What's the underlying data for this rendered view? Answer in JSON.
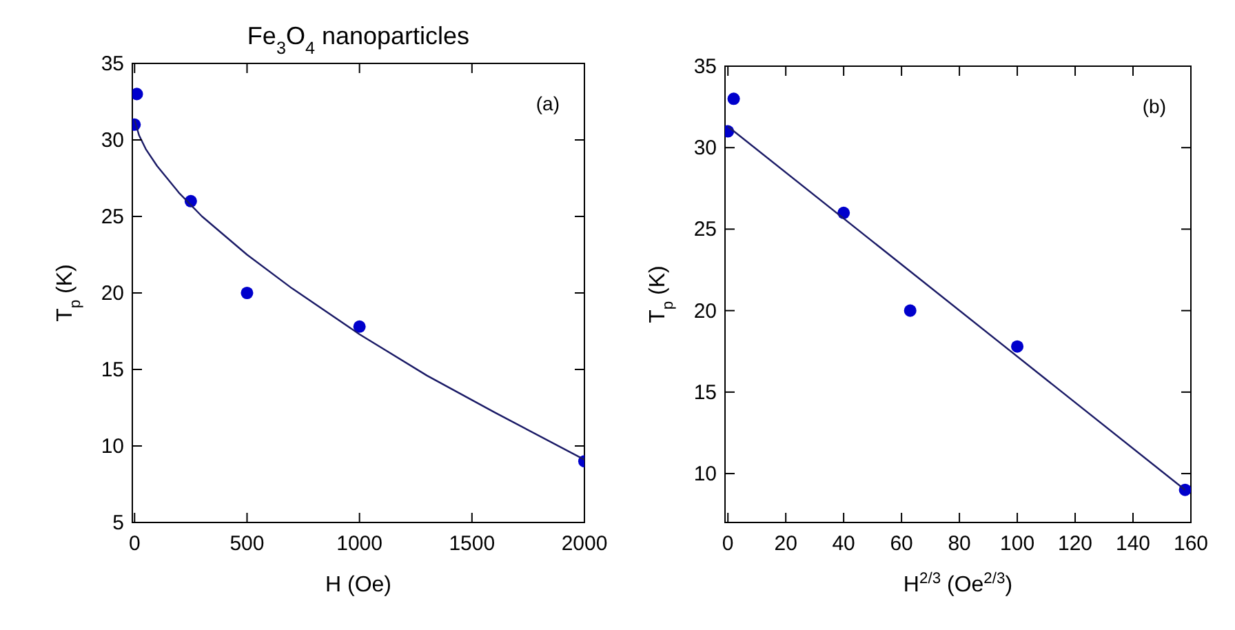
{
  "chart_data": [
    {
      "type": "scatter",
      "title": "Fe$_{3}$O$_{4}$ nanoparticles",
      "xlabel": "H (Oe)",
      "ylabel": "T$_{p}$ (K)",
      "annotations": [
        "(a)"
      ],
      "xlim": [
        -10,
        2000
      ],
      "xticks": [
        0,
        500,
        1000,
        1500,
        2000
      ],
      "ylim": [
        5,
        35
      ],
      "yticks": [
        5,
        10,
        15,
        20,
        25,
        30,
        35
      ],
      "grid": false,
      "legend": false,
      "marker": "circle",
      "series": [
        {
          "color": "#0000cc",
          "x": [
            0,
            10,
            250,
            500,
            1000,
            2000
          ],
          "values": [
            31,
            33,
            26,
            20,
            17.8,
            9
          ]
        },
        {
          "type": "line",
          "color": "#1a1a66",
          "marker": "none",
          "line_style": "solid",
          "x": [
            0,
            20,
            50,
            100,
            200,
            300,
            500,
            700,
            1000,
            1300,
            1600,
            2000
          ],
          "values": [
            31.3,
            30.3,
            29.4,
            28.3,
            26.5,
            25,
            22.5,
            20.3,
            17.3,
            14.6,
            12.2,
            9.1
          ]
        }
      ]
    },
    {
      "type": "scatter",
      "xlabel": "H$^{2/3}$ (Oe$^{2/3}$)",
      "ylabel": "T$_{p}$ (K)",
      "annotations": [
        "(b)"
      ],
      "xlim": [
        -1,
        160
      ],
      "xticks": [
        0,
        20,
        40,
        60,
        80,
        100,
        120,
        140,
        160
      ],
      "ylim": [
        7,
        35
      ],
      "yticks": [
        10,
        15,
        20,
        25,
        30,
        35
      ],
      "grid": false,
      "legend": false,
      "marker": "circle",
      "series": [
        {
          "color": "#0000cc",
          "x": [
            0,
            2,
            40,
            63,
            100,
            158
          ],
          "values": [
            31,
            33,
            26,
            20,
            17.8,
            9
          ]
        },
        {
          "type": "line",
          "color": "#1a1a66",
          "marker": "none",
          "line_style": "solid",
          "x": [
            0,
            158
          ],
          "values": [
            31.3,
            9
          ]
        }
      ]
    }
  ]
}
